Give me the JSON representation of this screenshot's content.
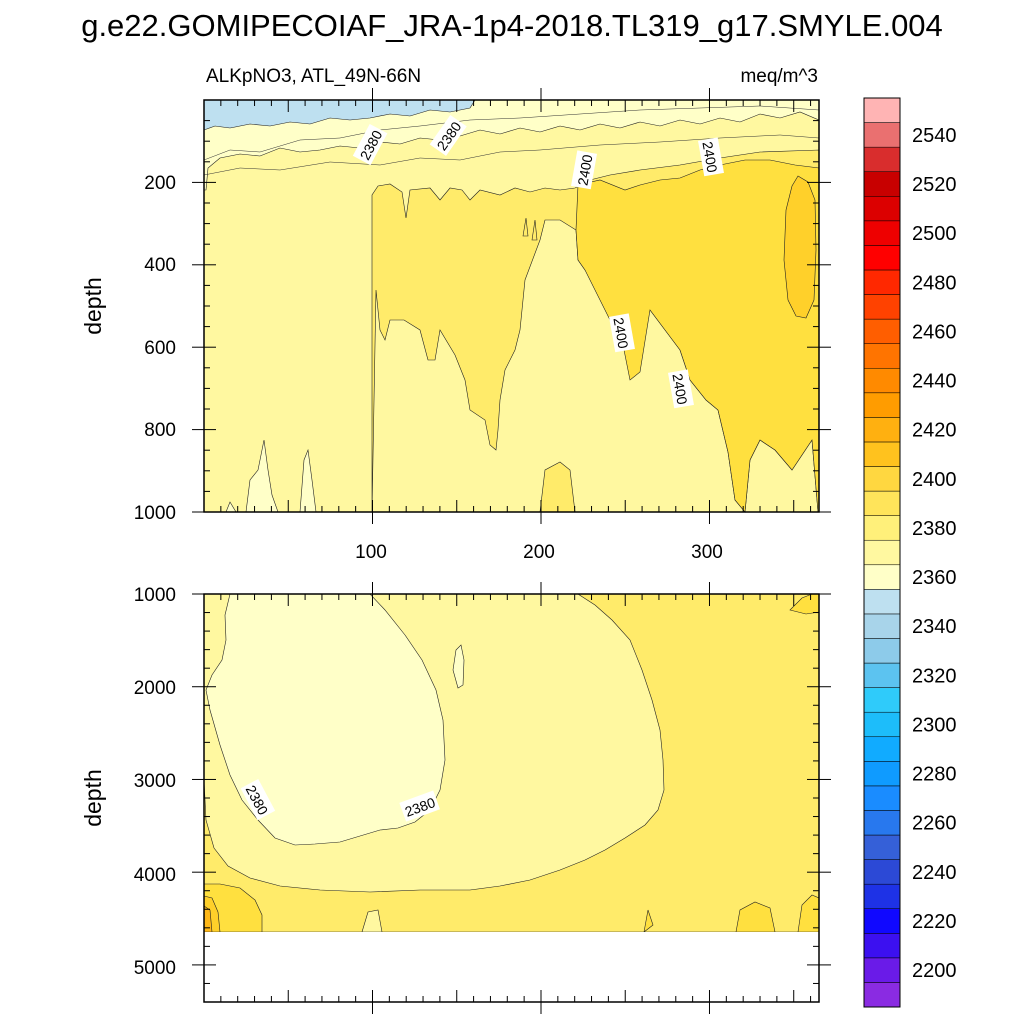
{
  "title": "g.e22.GOMIPECOIAF_JRA-1p4-2018.TL319_g17.SMYLE.004",
  "chart_data": [
    {
      "type": "heatmap",
      "panel": "top",
      "variable_label": "ALKpNO3, ATL_49N-66N",
      "units_label": "meq/m^3",
      "xlim": [
        0,
        365
      ],
      "xticks": [
        100,
        200,
        300
      ],
      "ylim": [
        1000,
        0
      ],
      "yticks": [
        200,
        400,
        600,
        800,
        1000
      ],
      "ylabel": "depth",
      "contour_labels": [
        "2380",
        "2380",
        "2400",
        "2400",
        "2400",
        "2400"
      ]
    },
    {
      "type": "heatmap",
      "panel": "bottom",
      "xlim": [
        0,
        365
      ],
      "ylim": [
        5400,
        1000
      ],
      "yticks": [
        1000,
        2000,
        3000,
        4000,
        5000
      ],
      "ylabel": "depth",
      "data_bottom_depth": 4620,
      "contour_labels": [
        "2380",
        "2380"
      ]
    }
  ],
  "colorbar": {
    "labels": [
      "2200",
      "2220",
      "2240",
      "2260",
      "2280",
      "2300",
      "2320",
      "2340",
      "2360",
      "2380",
      "2400",
      "2420",
      "2440",
      "2460",
      "2480",
      "2500",
      "2520",
      "2540"
    ],
    "colors": [
      "#8a2be2",
      "#6a1be8",
      "#3c10f0",
      "#1008ff",
      "#1e32e6",
      "#2c49d6",
      "#3560d8",
      "#2878ee",
      "#1a8cff",
      "#0f9bff",
      "#11abff",
      "#1dbdfa",
      "#2fcbfa",
      "#5cc3f0",
      "#8dcbea",
      "#a8d4ea",
      "#bee0f0",
      "#ffffc8",
      "#fff8a0",
      "#fff07a",
      "#ffe45a",
      "#ffd740",
      "#ffc21e",
      "#ffb010",
      "#ff9c00",
      "#ff8a00",
      "#ff7400",
      "#ff5e00",
      "#ff4200",
      "#ff2800",
      "#ff0000",
      "#ee0000",
      "#dc0000",
      "#c80000",
      "#d92d2d",
      "#ea7070",
      "#ffb4b4"
    ]
  },
  "colors": {
    "c2360": "#bee0f0",
    "c2380": "#ffffc8",
    "c2390": "#fff8a0",
    "c2400": "#ffeb6a",
    "c2410": "#ffe03f",
    "c2420": "#ffd02a",
    "c2430": "#ffb818"
  }
}
